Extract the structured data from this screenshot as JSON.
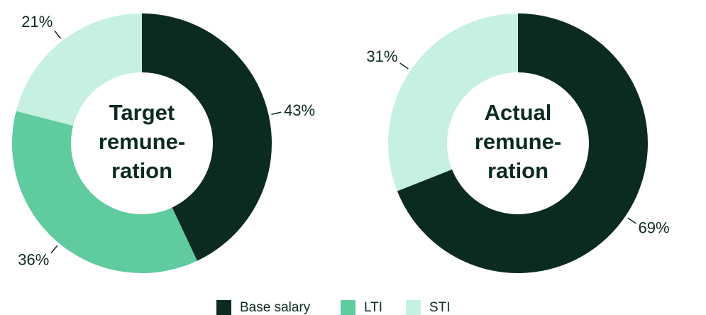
{
  "chart_data": [
    {
      "type": "donut",
      "title_lines": [
        "Target",
        "remune-",
        "ration"
      ],
      "categories": [
        "Base salary",
        "LTI",
        "STI"
      ],
      "values": [
        43,
        36,
        21
      ],
      "value_labels": [
        "43%",
        "36%",
        "21%"
      ],
      "colors": [
        "#0b2b20",
        "#5fcb9f",
        "#c6f1e0"
      ]
    },
    {
      "type": "donut",
      "title_lines": [
        "Actual",
        "remune-",
        "ration"
      ],
      "categories": [
        "Base salary",
        "STI"
      ],
      "values": [
        69,
        31
      ],
      "value_labels": [
        "69%",
        "31%"
      ],
      "colors": [
        "#0b2b20",
        "#c6f1e0"
      ]
    }
  ],
  "legend": [
    {
      "name": "Base salary",
      "color": "#0b2b20"
    },
    {
      "name": "LTI",
      "color": "#5fcb9f"
    },
    {
      "name": "STI",
      "color": "#c6f1e0"
    }
  ]
}
